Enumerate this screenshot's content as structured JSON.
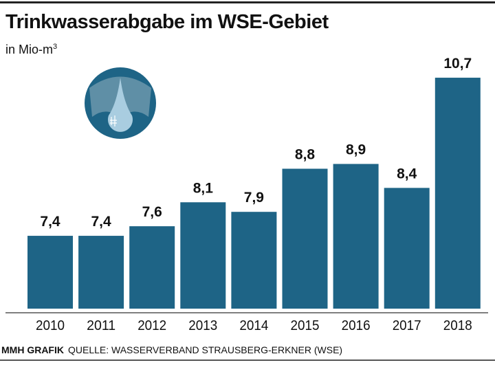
{
  "title": "Trinkwasserabgabe im WSE-Gebiet",
  "unit_label": "in Mio-m",
  "unit_superscript": "3",
  "footer": {
    "credit": "MMH GRAFIK",
    "source": "QUELLE: WASSERVERBAND STRAUSBERG-ERKNER (WSE)"
  },
  "icon": "water-drop-icon",
  "colors": {
    "bar": "#1e6486",
    "icon_dark": "#1e6486",
    "icon_mid": "#5f8fa6",
    "drop": "#a9cde0"
  },
  "chart_data": {
    "type": "bar",
    "title": "Trinkwasserabgabe im WSE-Gebiet",
    "ylabel": "in Mio-m³",
    "categories": [
      "2010",
      "2011",
      "2012",
      "2013",
      "2014",
      "2015",
      "2016",
      "2017",
      "2018"
    ],
    "values": [
      7.4,
      7.4,
      7.6,
      8.1,
      7.9,
      8.8,
      8.9,
      8.4,
      10.7
    ],
    "value_labels": [
      "7,4",
      "7,4",
      "7,6",
      "8,1",
      "7,9",
      "8,8",
      "8,9",
      "8,4",
      "10,7"
    ],
    "ylim": [
      5.88,
      11.2
    ],
    "grid": false,
    "legend": "none"
  }
}
